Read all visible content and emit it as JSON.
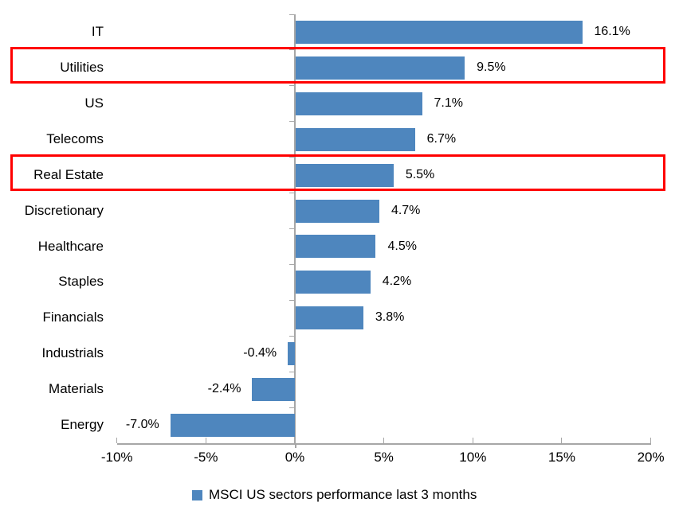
{
  "chart_data": {
    "type": "bar",
    "orientation": "horizontal",
    "title": "",
    "categories": [
      "IT",
      "Utilities",
      "US",
      "Telecoms",
      "Real Estate",
      "Discretionary",
      "Healthcare",
      "Staples",
      "Financials",
      "Industrials",
      "Materials",
      "Energy"
    ],
    "values": [
      16.1,
      9.5,
      7.1,
      6.7,
      5.5,
      4.7,
      4.5,
      4.2,
      3.8,
      -0.4,
      -2.4,
      -7.0
    ],
    "value_labels": [
      "16.1%",
      "9.5%",
      "7.1%",
      "6.7%",
      "5.5%",
      "4.7%",
      "4.5%",
      "4.2%",
      "3.8%",
      "-0.4%",
      "-2.4%",
      "-7.0%"
    ],
    "x_tick_values": [
      -10,
      -5,
      0,
      5,
      10,
      15,
      20
    ],
    "x_tick_labels": [
      "-10%",
      "-5%",
      "0%",
      "5%",
      "10%",
      "15%",
      "20%"
    ],
    "xlim": [
      -10,
      20
    ],
    "grid": false,
    "legend": "MSCI US sectors performance last 3 months",
    "legend_position": "bottom",
    "highlighted_categories": [
      "Utilities",
      "Real Estate"
    ],
    "colors": {
      "bar": "#4E86BE",
      "highlight_border": "#FF0000",
      "axis": "#A6A6A6",
      "text": "#000000"
    }
  }
}
